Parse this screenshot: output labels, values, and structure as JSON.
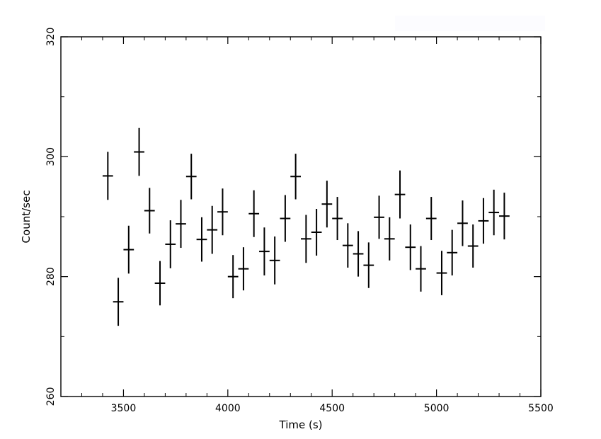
{
  "chart_data": {
    "type": "scatter",
    "xlabel": "Time (s)",
    "ylabel": "Count/sec",
    "xlim": [
      3200,
      5500
    ],
    "ylim": [
      260,
      320
    ],
    "xticks": [
      3500,
      4000,
      4500,
      5000,
      5500
    ],
    "yticks": [
      260,
      280,
      300,
      320
    ],
    "x_minor_step": 100,
    "y_minor_step": 10,
    "x_halfwidth": 25,
    "grid": false,
    "legend": "none",
    "color": "#000000",
    "points": [
      {
        "x": 3425,
        "y": 296.8,
        "err": 4.0
      },
      {
        "x": 3475,
        "y": 275.8,
        "err": 4.0
      },
      {
        "x": 3525,
        "y": 284.5,
        "err": 4.0
      },
      {
        "x": 3575,
        "y": 300.8,
        "err": 4.0
      },
      {
        "x": 3625,
        "y": 291.0,
        "err": 3.8
      },
      {
        "x": 3675,
        "y": 278.9,
        "err": 3.7
      },
      {
        "x": 3725,
        "y": 285.4,
        "err": 4.0
      },
      {
        "x": 3775,
        "y": 288.8,
        "err": 4.0
      },
      {
        "x": 3825,
        "y": 296.7,
        "err": 3.8
      },
      {
        "x": 3875,
        "y": 286.2,
        "err": 3.7
      },
      {
        "x": 3925,
        "y": 287.8,
        "err": 4.0
      },
      {
        "x": 3975,
        "y": 290.8,
        "err": 3.9
      },
      {
        "x": 4025,
        "y": 280.0,
        "err": 3.6
      },
      {
        "x": 4075,
        "y": 281.3,
        "err": 3.6
      },
      {
        "x": 4125,
        "y": 290.5,
        "err": 3.9
      },
      {
        "x": 4175,
        "y": 284.2,
        "err": 4.0
      },
      {
        "x": 4225,
        "y": 282.7,
        "err": 4.0
      },
      {
        "x": 4275,
        "y": 289.7,
        "err": 3.9
      },
      {
        "x": 4325,
        "y": 296.7,
        "err": 3.8
      },
      {
        "x": 4375,
        "y": 286.3,
        "err": 4.0
      },
      {
        "x": 4425,
        "y": 287.4,
        "err": 3.9
      },
      {
        "x": 4475,
        "y": 292.1,
        "err": 3.9
      },
      {
        "x": 4525,
        "y": 289.7,
        "err": 3.6
      },
      {
        "x": 4575,
        "y": 285.2,
        "err": 3.7
      },
      {
        "x": 4625,
        "y": 283.8,
        "err": 3.8
      },
      {
        "x": 4675,
        "y": 281.9,
        "err": 3.8
      },
      {
        "x": 4725,
        "y": 289.9,
        "err": 3.6
      },
      {
        "x": 4775,
        "y": 286.3,
        "err": 3.6
      },
      {
        "x": 4825,
        "y": 293.7,
        "err": 4.0
      },
      {
        "x": 4875,
        "y": 284.9,
        "err": 3.8
      },
      {
        "x": 4925,
        "y": 281.3,
        "err": 3.8
      },
      {
        "x": 4975,
        "y": 289.7,
        "err": 3.6
      },
      {
        "x": 5025,
        "y": 280.6,
        "err": 3.7
      },
      {
        "x": 5075,
        "y": 284.0,
        "err": 3.8
      },
      {
        "x": 5125,
        "y": 288.9,
        "err": 3.8
      },
      {
        "x": 5175,
        "y": 285.1,
        "err": 3.6
      },
      {
        "x": 5225,
        "y": 289.3,
        "err": 3.8
      },
      {
        "x": 5275,
        "y": 290.7,
        "err": 3.8
      },
      {
        "x": 5325,
        "y": 290.1,
        "err": 3.9
      }
    ]
  }
}
